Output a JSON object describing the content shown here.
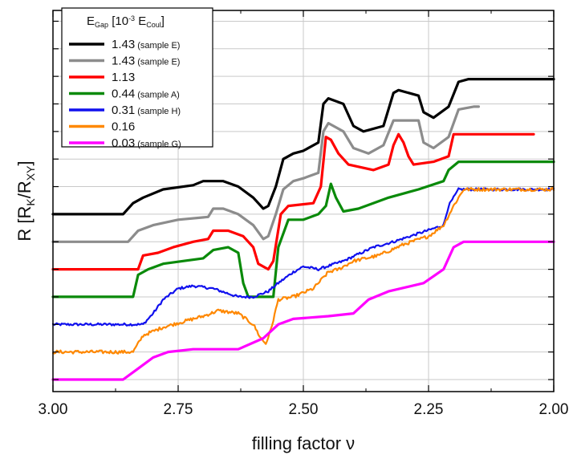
{
  "chart_data": {
    "type": "line",
    "xlabel": "filling factor ν",
    "ylabel": {
      "base": "R [R",
      "sub1": "K",
      "mid": "/R",
      "sub2": "XY",
      "end": "]"
    },
    "xlim": [
      3.0,
      2.0
    ],
    "x_reversed": true,
    "ylim": [
      0,
      13
    ],
    "y_ticks_labeled": false,
    "x_ticks": [
      "3.00",
      "2.75",
      "2.50",
      "2.25",
      "2.00"
    ],
    "x_tick_values": [
      3.0,
      2.75,
      2.5,
      2.25,
      2.0
    ],
    "grid": true,
    "legend": {
      "placement": "top-left",
      "title": {
        "base": "E",
        "sub1": "Gap",
        "mid": " [10",
        "sup": "-3",
        "mid2": " E",
        "sub2": "Coul",
        "end": "]"
      }
    },
    "series": [
      {
        "name": "1.43",
        "sample": "(sample E)",
        "color": "#000000",
        "noise": 0,
        "points": [
          [
            3.0,
            6.0
          ],
          [
            2.86,
            6.0
          ],
          [
            2.84,
            6.4
          ],
          [
            2.82,
            6.6
          ],
          [
            2.78,
            6.9
          ],
          [
            2.72,
            7.05
          ],
          [
            2.7,
            7.2
          ],
          [
            2.66,
            7.2
          ],
          [
            2.63,
            7.0
          ],
          [
            2.6,
            6.6
          ],
          [
            2.58,
            6.2
          ],
          [
            2.57,
            6.3
          ],
          [
            2.555,
            7.0
          ],
          [
            2.54,
            8.0
          ],
          [
            2.52,
            8.2
          ],
          [
            2.5,
            8.3
          ],
          [
            2.47,
            8.6
          ],
          [
            2.46,
            10.0
          ],
          [
            2.45,
            10.2
          ],
          [
            2.42,
            10.0
          ],
          [
            2.4,
            9.2
          ],
          [
            2.38,
            9.0
          ],
          [
            2.34,
            9.2
          ],
          [
            2.32,
            10.4
          ],
          [
            2.31,
            10.5
          ],
          [
            2.27,
            10.3
          ],
          [
            2.26,
            9.7
          ],
          [
            2.24,
            9.5
          ],
          [
            2.21,
            9.9
          ],
          [
            2.19,
            10.8
          ],
          [
            2.17,
            10.9
          ],
          [
            2.0,
            10.9
          ]
        ]
      },
      {
        "name": "1.43",
        "sample": "(sample E)",
        "color": "#8c8c8c",
        "noise": 0,
        "points": [
          [
            3.0,
            5.0
          ],
          [
            2.85,
            5.0
          ],
          [
            2.83,
            5.4
          ],
          [
            2.8,
            5.6
          ],
          [
            2.75,
            5.8
          ],
          [
            2.69,
            5.9
          ],
          [
            2.68,
            6.2
          ],
          [
            2.66,
            6.2
          ],
          [
            2.63,
            6.0
          ],
          [
            2.6,
            5.6
          ],
          [
            2.58,
            5.1
          ],
          [
            2.57,
            5.2
          ],
          [
            2.555,
            6.0
          ],
          [
            2.54,
            6.9
          ],
          [
            2.52,
            7.2
          ],
          [
            2.5,
            7.3
          ],
          [
            2.47,
            7.5
          ],
          [
            2.46,
            9.0
          ],
          [
            2.45,
            9.3
          ],
          [
            2.42,
            9.0
          ],
          [
            2.4,
            8.4
          ],
          [
            2.37,
            8.2
          ],
          [
            2.34,
            8.5
          ],
          [
            2.32,
            9.4
          ],
          [
            2.27,
            9.4
          ],
          [
            2.26,
            8.6
          ],
          [
            2.24,
            8.4
          ],
          [
            2.21,
            8.8
          ],
          [
            2.19,
            9.8
          ],
          [
            2.16,
            9.9
          ],
          [
            2.15,
            9.9
          ]
        ]
      },
      {
        "name": "1.13",
        "sample": "",
        "color": "#ff0000",
        "noise": 0,
        "points": [
          [
            3.0,
            4.0
          ],
          [
            2.83,
            4.0
          ],
          [
            2.82,
            4.5
          ],
          [
            2.79,
            4.6
          ],
          [
            2.76,
            4.8
          ],
          [
            2.72,
            5.0
          ],
          [
            2.69,
            5.1
          ],
          [
            2.68,
            5.4
          ],
          [
            2.65,
            5.4
          ],
          [
            2.62,
            5.2
          ],
          [
            2.6,
            4.8
          ],
          [
            2.59,
            4.2
          ],
          [
            2.57,
            4.0
          ],
          [
            2.56,
            4.3
          ],
          [
            2.545,
            6.0
          ],
          [
            2.53,
            6.3
          ],
          [
            2.48,
            6.4
          ],
          [
            2.465,
            7.0
          ],
          [
            2.455,
            8.8
          ],
          [
            2.445,
            8.7
          ],
          [
            2.43,
            8.2
          ],
          [
            2.41,
            7.8
          ],
          [
            2.36,
            7.6
          ],
          [
            2.33,
            7.8
          ],
          [
            2.32,
            8.5
          ],
          [
            2.31,
            8.9
          ],
          [
            2.3,
            8.6
          ],
          [
            2.29,
            8.1
          ],
          [
            2.28,
            7.8
          ],
          [
            2.24,
            7.9
          ],
          [
            2.21,
            8.1
          ],
          [
            2.2,
            8.9
          ],
          [
            2.17,
            8.9
          ],
          [
            2.04,
            8.9
          ]
        ]
      },
      {
        "name": "0.44",
        "sample": "(sample A)",
        "color": "#0a8a0a",
        "noise": 0,
        "points": [
          [
            3.0,
            3.0
          ],
          [
            2.84,
            3.0
          ],
          [
            2.83,
            3.8
          ],
          [
            2.81,
            4.0
          ],
          [
            2.78,
            4.2
          ],
          [
            2.74,
            4.3
          ],
          [
            2.7,
            4.4
          ],
          [
            2.68,
            4.7
          ],
          [
            2.65,
            4.8
          ],
          [
            2.63,
            4.6
          ],
          [
            2.62,
            3.5
          ],
          [
            2.61,
            3.0
          ],
          [
            2.56,
            3.0
          ],
          [
            2.55,
            4.8
          ],
          [
            2.53,
            5.8
          ],
          [
            2.5,
            5.8
          ],
          [
            2.47,
            6.0
          ],
          [
            2.455,
            6.3
          ],
          [
            2.445,
            7.1
          ],
          [
            2.435,
            6.6
          ],
          [
            2.42,
            6.1
          ],
          [
            2.39,
            6.2
          ],
          [
            2.33,
            6.6
          ],
          [
            2.27,
            6.9
          ],
          [
            2.22,
            7.2
          ],
          [
            2.21,
            7.6
          ],
          [
            2.19,
            7.9
          ],
          [
            2.0,
            7.9
          ]
        ]
      },
      {
        "name": "0.31",
        "sample": "(sample H)",
        "color": "#1010ee",
        "noise": 0.09,
        "points": [
          [
            3.0,
            2.0
          ],
          [
            2.82,
            2.0
          ],
          [
            2.8,
            2.4
          ],
          [
            2.78,
            2.9
          ],
          [
            2.75,
            3.3
          ],
          [
            2.72,
            3.4
          ],
          [
            2.68,
            3.3
          ],
          [
            2.63,
            3.0
          ],
          [
            2.6,
            3.0
          ],
          [
            2.57,
            3.2
          ],
          [
            2.55,
            3.5
          ],
          [
            2.52,
            3.9
          ],
          [
            2.5,
            4.1
          ],
          [
            2.47,
            4.0
          ],
          [
            2.42,
            4.3
          ],
          [
            2.36,
            4.8
          ],
          [
            2.32,
            5.0
          ],
          [
            2.27,
            5.3
          ],
          [
            2.22,
            5.6
          ],
          [
            2.21,
            6.3
          ],
          [
            2.19,
            6.9
          ],
          [
            2.0,
            6.9
          ]
        ]
      },
      {
        "name": "0.16",
        "sample": "",
        "color": "#ff8800",
        "noise": 0.12,
        "points": [
          [
            3.0,
            1.0
          ],
          [
            2.84,
            1.0
          ],
          [
            2.82,
            1.6
          ],
          [
            2.78,
            1.9
          ],
          [
            2.74,
            2.1
          ],
          [
            2.7,
            2.3
          ],
          [
            2.67,
            2.5
          ],
          [
            2.63,
            2.4
          ],
          [
            2.6,
            2.0
          ],
          [
            2.585,
            1.5
          ],
          [
            2.575,
            1.3
          ],
          [
            2.565,
            1.8
          ],
          [
            2.55,
            2.9
          ],
          [
            2.52,
            3.0
          ],
          [
            2.48,
            3.3
          ],
          [
            2.45,
            3.9
          ],
          [
            2.43,
            4.0
          ],
          [
            2.4,
            4.3
          ],
          [
            2.35,
            4.5
          ],
          [
            2.3,
            4.9
          ],
          [
            2.25,
            5.2
          ],
          [
            2.22,
            5.6
          ],
          [
            2.2,
            6.3
          ],
          [
            2.18,
            6.9
          ],
          [
            2.0,
            6.9
          ]
        ]
      },
      {
        "name": "0.03",
        "sample": "(sample G)",
        "color": "#ff00ff",
        "noise": 0,
        "points": [
          [
            3.0,
            0.0
          ],
          [
            2.86,
            0.0
          ],
          [
            2.83,
            0.4
          ],
          [
            2.8,
            0.8
          ],
          [
            2.77,
            1.0
          ],
          [
            2.72,
            1.1
          ],
          [
            2.67,
            1.1
          ],
          [
            2.63,
            1.1
          ],
          [
            2.58,
            1.5
          ],
          [
            2.55,
            2.0
          ],
          [
            2.52,
            2.2
          ],
          [
            2.45,
            2.3
          ],
          [
            2.4,
            2.4
          ],
          [
            2.37,
            2.9
          ],
          [
            2.33,
            3.2
          ],
          [
            2.26,
            3.5
          ],
          [
            2.22,
            4.0
          ],
          [
            2.2,
            4.8
          ],
          [
            2.18,
            5.0
          ],
          [
            2.0,
            5.0
          ]
        ]
      }
    ]
  }
}
